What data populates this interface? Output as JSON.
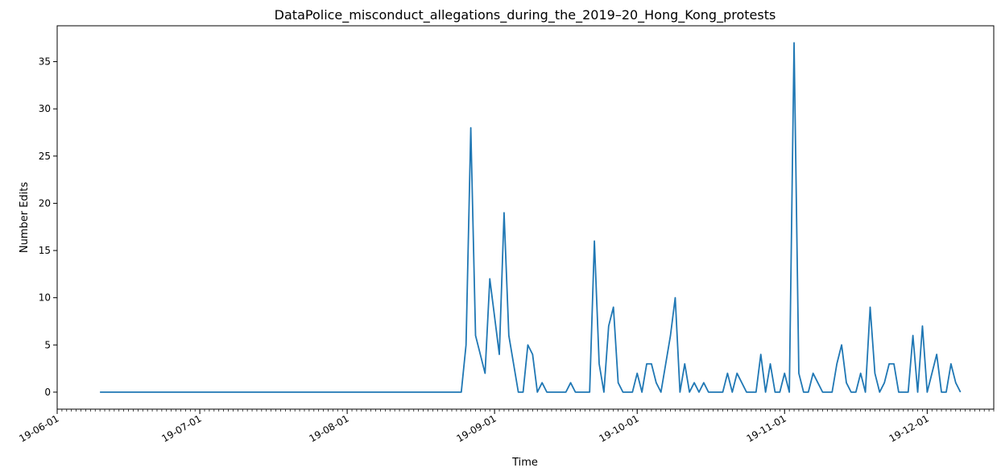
{
  "chart_data": {
    "type": "line",
    "title": "DataPolice_misconduct_allegations_during_the_2019–20_Hong_Kong_protests",
    "xlabel": "Time",
    "ylabel": "Number Edits",
    "xlim": [
      "2019-06-01",
      "2019-12-15"
    ],
    "ylim": [
      -1.8,
      38.8
    ],
    "grid": false,
    "legend": "none",
    "x_ticks": [
      {
        "date": "2019-06-01",
        "label": "19-06-01"
      },
      {
        "date": "2019-07-01",
        "label": "19-07-01"
      },
      {
        "date": "2019-08-01",
        "label": "19-08-01"
      },
      {
        "date": "2019-09-01",
        "label": "19-09-01"
      },
      {
        "date": "2019-10-01",
        "label": "19-10-01"
      },
      {
        "date": "2019-11-01",
        "label": "19-11-01"
      },
      {
        "date": "2019-12-01",
        "label": "19-12-01"
      }
    ],
    "y_ticks": [
      {
        "value": 0,
        "label": "0"
      },
      {
        "value": 5,
        "label": "5"
      },
      {
        "value": 10,
        "label": "10"
      },
      {
        "value": 15,
        "label": "15"
      },
      {
        "value": 20,
        "label": "20"
      },
      {
        "value": 25,
        "label": "25"
      },
      {
        "value": 30,
        "label": "30"
      },
      {
        "value": 35,
        "label": "35"
      }
    ],
    "series": [
      {
        "color": "#1f77b4",
        "points": [
          [
            "2019-06-10",
            0
          ],
          [
            "2019-08-25",
            0
          ],
          [
            "2019-08-26",
            5
          ],
          [
            "2019-08-27",
            28
          ],
          [
            "2019-08-28",
            6
          ],
          [
            "2019-08-30",
            2
          ],
          [
            "2019-08-31",
            12
          ],
          [
            "2019-09-02",
            4
          ],
          [
            "2019-09-03",
            19
          ],
          [
            "2019-09-04",
            6
          ],
          [
            "2019-09-06",
            0
          ],
          [
            "2019-09-07",
            0
          ],
          [
            "2019-09-08",
            5
          ],
          [
            "2019-09-09",
            4
          ],
          [
            "2019-09-10",
            0
          ],
          [
            "2019-09-11",
            1
          ],
          [
            "2019-09-12",
            0
          ],
          [
            "2019-09-16",
            0
          ],
          [
            "2019-09-17",
            1
          ],
          [
            "2019-09-18",
            0
          ],
          [
            "2019-09-21",
            0
          ],
          [
            "2019-09-22",
            16
          ],
          [
            "2019-09-23",
            3
          ],
          [
            "2019-09-24",
            0
          ],
          [
            "2019-09-25",
            7
          ],
          [
            "2019-09-26",
            9
          ],
          [
            "2019-09-27",
            1
          ],
          [
            "2019-09-28",
            0
          ],
          [
            "2019-09-30",
            0
          ],
          [
            "2019-10-01",
            2
          ],
          [
            "2019-10-02",
            0
          ],
          [
            "2019-10-03",
            3
          ],
          [
            "2019-10-04",
            3
          ],
          [
            "2019-10-05",
            1
          ],
          [
            "2019-10-06",
            0
          ],
          [
            "2019-10-07",
            3
          ],
          [
            "2019-10-08",
            6
          ],
          [
            "2019-10-09",
            10
          ],
          [
            "2019-10-10",
            0
          ],
          [
            "2019-10-11",
            3
          ],
          [
            "2019-10-12",
            0
          ],
          [
            "2019-10-13",
            1
          ],
          [
            "2019-10-14",
            0
          ],
          [
            "2019-10-15",
            1
          ],
          [
            "2019-10-16",
            0
          ],
          [
            "2019-10-19",
            0
          ],
          [
            "2019-10-20",
            2
          ],
          [
            "2019-10-21",
            0
          ],
          [
            "2019-10-22",
            2
          ],
          [
            "2019-10-24",
            0
          ],
          [
            "2019-10-26",
            0
          ],
          [
            "2019-10-27",
            4
          ],
          [
            "2019-10-28",
            0
          ],
          [
            "2019-10-29",
            3
          ],
          [
            "2019-10-30",
            0
          ],
          [
            "2019-10-31",
            0
          ],
          [
            "2019-11-01",
            2
          ],
          [
            "2019-11-02",
            0
          ],
          [
            "2019-11-03",
            37
          ],
          [
            "2019-11-04",
            2
          ],
          [
            "2019-11-05",
            0
          ],
          [
            "2019-11-06",
            0
          ],
          [
            "2019-11-07",
            2
          ],
          [
            "2019-11-08",
            1
          ],
          [
            "2019-11-09",
            0
          ],
          [
            "2019-11-11",
            0
          ],
          [
            "2019-11-12",
            3
          ],
          [
            "2019-11-13",
            5
          ],
          [
            "2019-11-14",
            1
          ],
          [
            "2019-11-15",
            0
          ],
          [
            "2019-11-16",
            0
          ],
          [
            "2019-11-17",
            2
          ],
          [
            "2019-11-18",
            0
          ],
          [
            "2019-11-19",
            9
          ],
          [
            "2019-11-20",
            2
          ],
          [
            "2019-11-21",
            0
          ],
          [
            "2019-11-22",
            1
          ],
          [
            "2019-11-23",
            3
          ],
          [
            "2019-11-24",
            3
          ],
          [
            "2019-11-25",
            0
          ],
          [
            "2019-11-27",
            0
          ],
          [
            "2019-11-28",
            6
          ],
          [
            "2019-11-29",
            0
          ],
          [
            "2019-11-30",
            7
          ],
          [
            "2019-12-01",
            0
          ],
          [
            "2019-12-03",
            4
          ],
          [
            "2019-12-04",
            0
          ],
          [
            "2019-12-05",
            0
          ],
          [
            "2019-12-06",
            3
          ],
          [
            "2019-12-07",
            1
          ],
          [
            "2019-12-08",
            0
          ]
        ]
      }
    ]
  }
}
